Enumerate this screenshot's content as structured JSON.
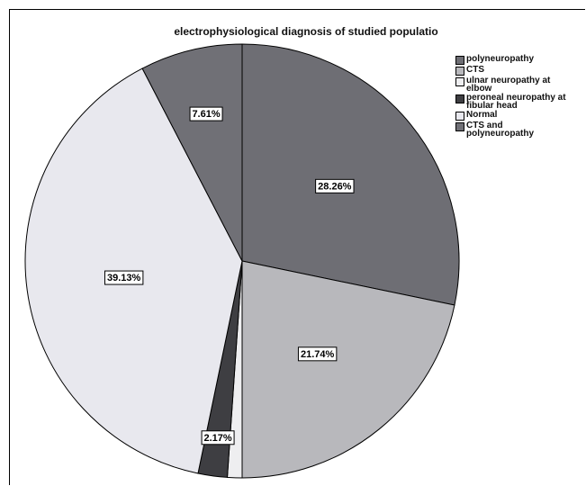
{
  "chart_data": {
    "type": "pie",
    "title": "electrophysiological diagnosis of studied populatio",
    "categories": [
      "polyneuropathy",
      "CTS",
      "ulnar neuropathy at elbow",
      "peroneal neuropathy at fibular head",
      "Normal",
      "CTS and polyneuropathy"
    ],
    "values": [
      28.26,
      21.74,
      1.09,
      2.17,
      39.13,
      7.61
    ],
    "slice_labels": [
      "28.26%",
      "21.74%",
      "",
      "2.17%",
      "39.13%",
      "7.61%"
    ],
    "colors": [
      "#6e6e74",
      "#b8b8bc",
      "#eeeef0",
      "#3e3e42",
      "#e8e8ee",
      "#707076"
    ],
    "legend": {
      "position": "top-right",
      "items": [
        {
          "label": "polyneuropathy",
          "color": "#6e6e74"
        },
        {
          "label": "CTS",
          "color": "#b8b8bc"
        },
        {
          "label": "ulnar neuropathy at\nelbow",
          "color": "#eeeef0"
        },
        {
          "label": "peroneal neuropathy at\nfibular head",
          "color": "#3e3e42"
        },
        {
          "label": "Normal",
          "color": "#e8e8ee"
        },
        {
          "label": "CTS and\npolyneuropathy",
          "color": "#707076"
        }
      ]
    }
  }
}
